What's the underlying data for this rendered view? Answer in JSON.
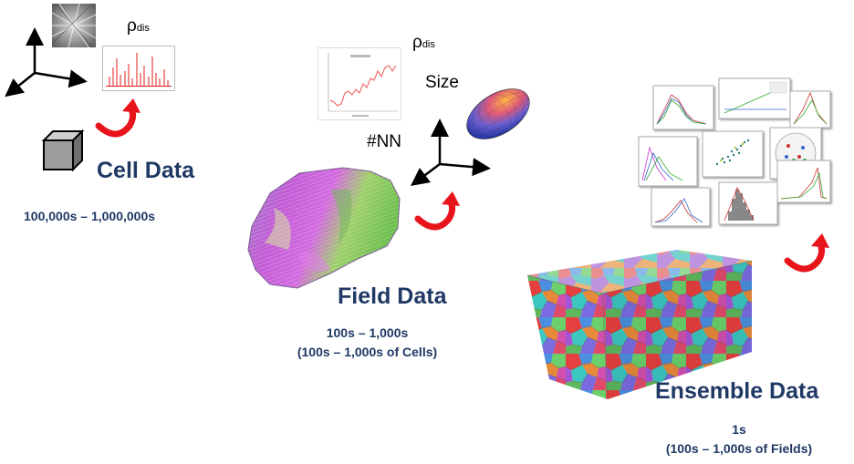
{
  "cell": {
    "title": "Cell Data",
    "count": "100,000s – 1,000,000s",
    "rho_main": "ρ",
    "rho_sub": "dis"
  },
  "field": {
    "title": "Field Data",
    "count_line1": "100s – 1,000s",
    "count_line2": "(100s – 1,000s of Cells)",
    "rho_main": "ρ",
    "rho_sub": "dis",
    "size_label": "Size",
    "nn_label": "#NN"
  },
  "ensemble": {
    "title": "Ensemble Data",
    "count_line1": "1s",
    "count_line2": "(100s – 1,000s of Fields)"
  },
  "colors": {
    "title_navy": "#1f3864",
    "arrow_red": "#e8141b",
    "axis_black": "#000000"
  }
}
